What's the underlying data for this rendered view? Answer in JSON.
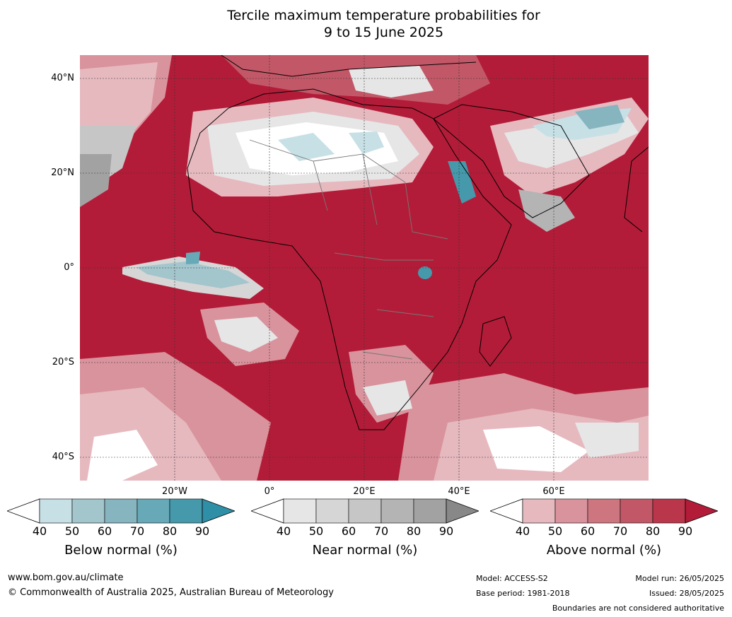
{
  "title": {
    "line1": "Tercile maximum temperature probabilities for",
    "line2": "9 to 15 June 2025"
  },
  "map": {
    "lat_labels": [
      "40°N",
      "20°N",
      "0°",
      "20°S",
      "40°S"
    ],
    "lon_labels": [
      "20°W",
      "0°",
      "20°E",
      "40°E",
      "60°E"
    ]
  },
  "legends": [
    {
      "label": "Below normal (%)",
      "ticks": [
        "40",
        "50",
        "60",
        "70",
        "80",
        "90"
      ],
      "colors": [
        "#ffffff",
        "#c7e0e6",
        "#a3c5cc",
        "#86b4bf",
        "#68a9b7",
        "#4599ab",
        "#2e8fa6"
      ]
    },
    {
      "label": "Near normal (%)",
      "ticks": [
        "40",
        "50",
        "60",
        "70",
        "80",
        "90"
      ],
      "colors": [
        "#ffffff",
        "#e6e6e6",
        "#d6d6d6",
        "#c6c6c6",
        "#b4b4b4",
        "#a2a2a2",
        "#888888"
      ]
    },
    {
      "label": "Above normal (%)",
      "ticks": [
        "40",
        "50",
        "60",
        "70",
        "80",
        "90"
      ],
      "colors": [
        "#ffffff",
        "#e6b9bf",
        "#d9939d",
        "#cd7680",
        "#c25867",
        "#b9364b",
        "#b31c38"
      ]
    }
  ],
  "footer": {
    "website": "www.bom.gov.au/climate",
    "copyright": "© Commonwealth of Australia 2025, Australian Bureau of Meteorology",
    "model": "Model: ACCESS-S2",
    "base_period": "Base period: 1981-2018",
    "model_run": "Model run: 26/05/2025",
    "issued": "Issued: 28/05/2025",
    "disclaimer": "Boundaries are not considered authoritative"
  }
}
